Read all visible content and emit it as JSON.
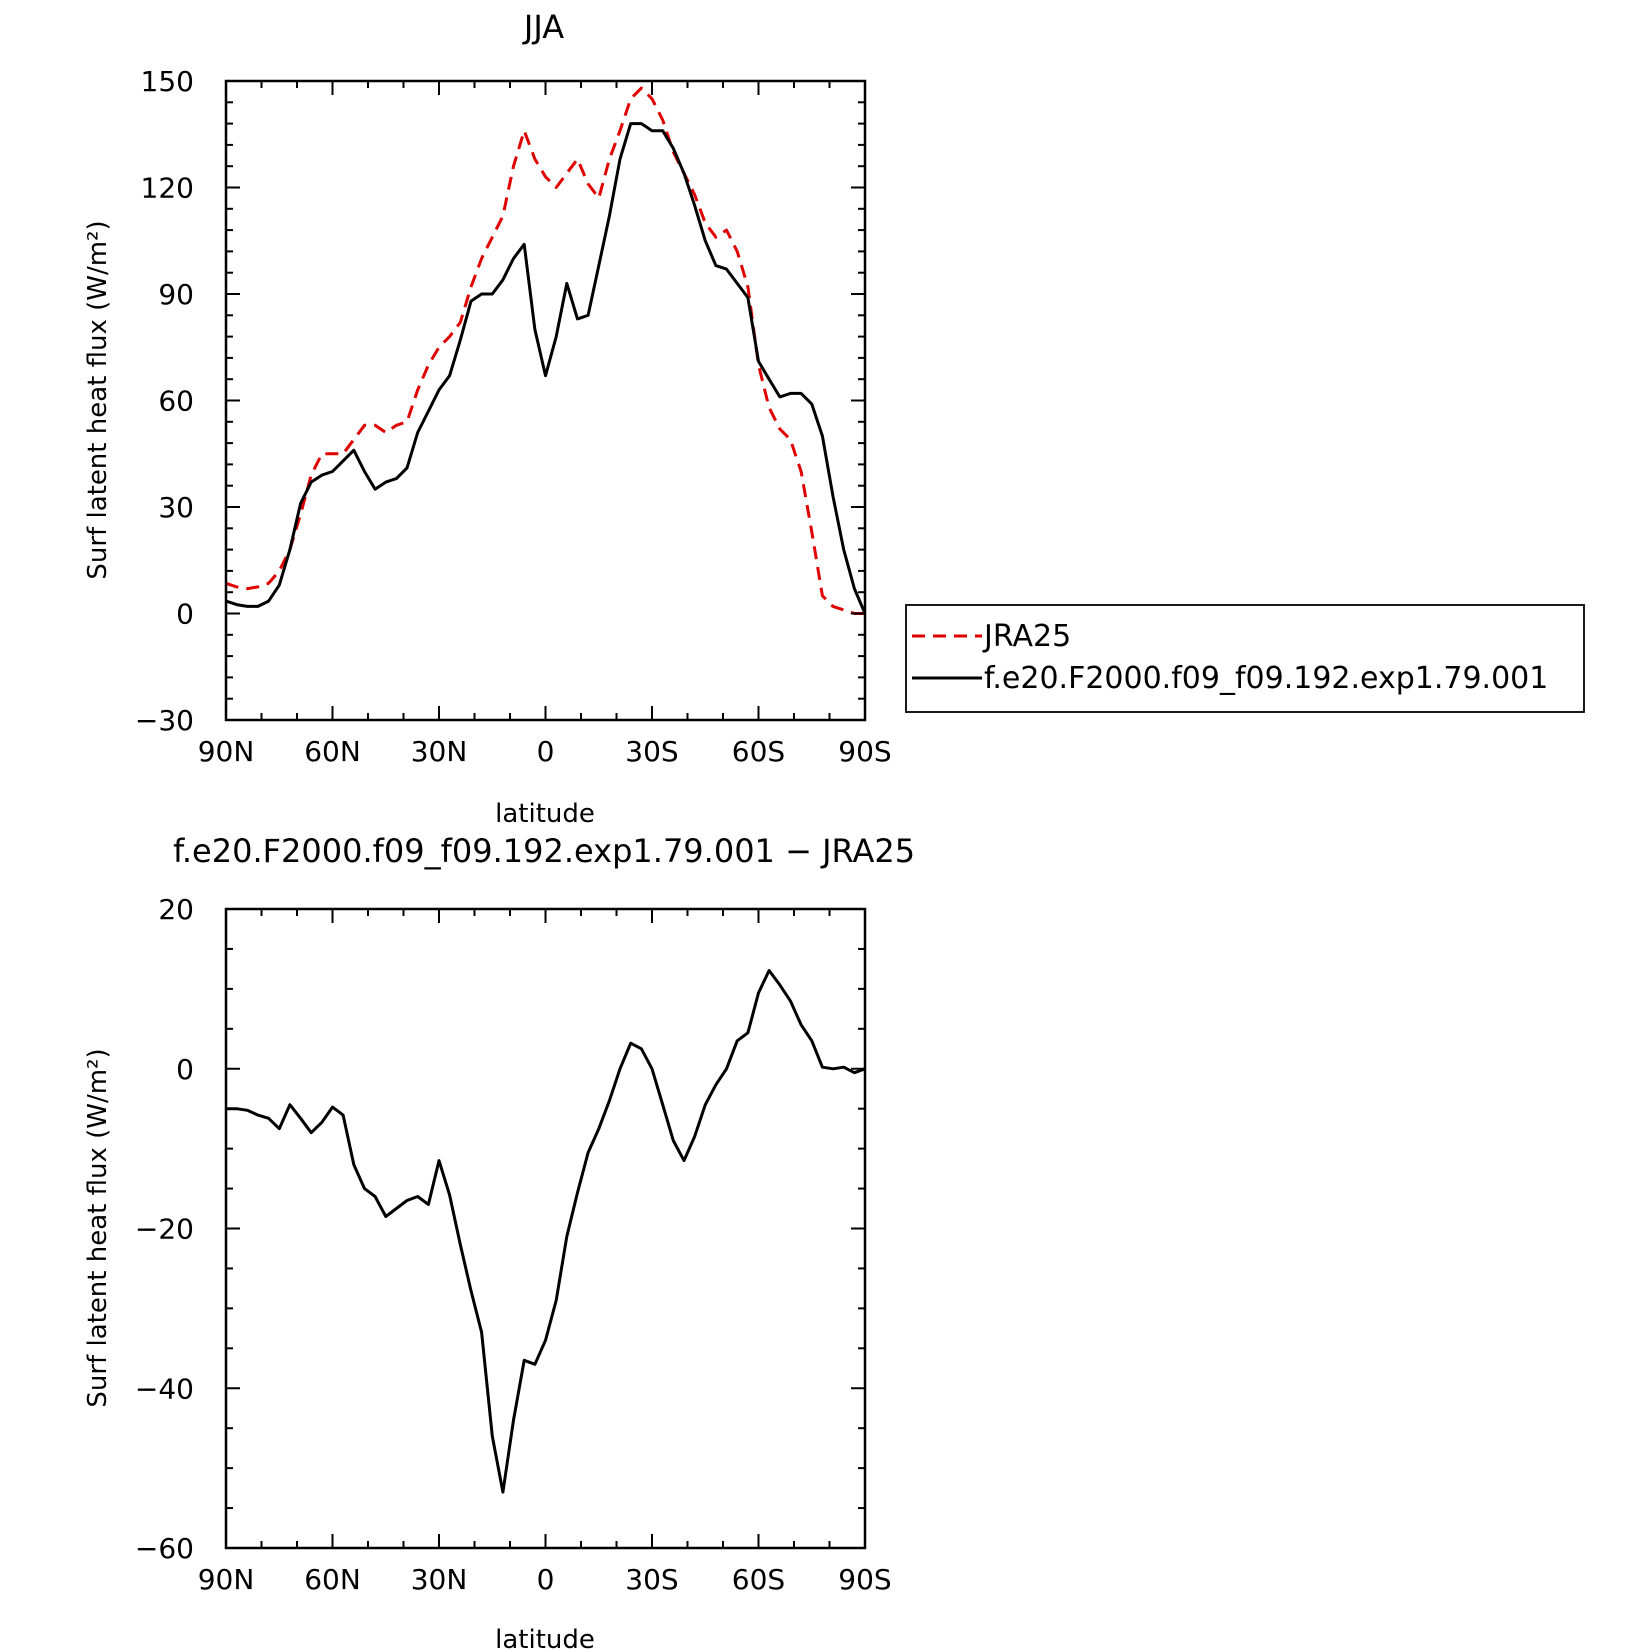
{
  "chart_data": [
    {
      "type": "line",
      "title": "JJA",
      "xlabel": "latitude",
      "ylabel": "Surf latent heat flux (W/m²)",
      "xlim": [
        90,
        -90
      ],
      "ylim": [
        -30,
        150
      ],
      "xticks": [
        90,
        60,
        30,
        0,
        -30,
        -60,
        -90
      ],
      "xtick_labels": [
        "90N",
        "60N",
        "30N",
        "0",
        "30S",
        "60S",
        "90S"
      ],
      "yticks": [
        -30,
        0,
        30,
        60,
        90,
        120,
        150
      ],
      "ytick_labels": [
        "−30",
        "0",
        "30",
        "60",
        "90",
        "120",
        "150"
      ],
      "legend": {
        "placement": "right",
        "entries": [
          "JRA25",
          "f.e20.F2000.f09_f09.192.exp1.79.001"
        ]
      },
      "series": [
        {
          "name": "JRA25",
          "color": "#e00000",
          "dash": "dashed",
          "x": [
            90,
            87,
            84,
            81,
            78,
            75,
            72,
            69,
            66,
            63,
            60,
            57,
            54,
            51,
            48,
            45,
            42,
            39,
            36,
            33,
            30,
            27,
            24,
            21,
            18,
            15,
            12,
            9,
            6,
            3,
            0,
            -3,
            -6,
            -9,
            -12,
            -15,
            -18,
            -21,
            -24,
            -27,
            -30,
            -33,
            -36,
            -39,
            -42,
            -45,
            -48,
            -51,
            -54,
            -57,
            -60,
            -63,
            -66,
            -69,
            -72,
            -75,
            -78,
            -81,
            -84,
            -87,
            -90
          ],
          "y": [
            8.5,
            7.5,
            7,
            7.5,
            8.5,
            12,
            18,
            28,
            39,
            45,
            45,
            45,
            49,
            53,
            53,
            51,
            53,
            54,
            63,
            70,
            75,
            78,
            82,
            92,
            100,
            106,
            112,
            126,
            136,
            128,
            123,
            120,
            124,
            128,
            121,
            117,
            128,
            136,
            145,
            148,
            145,
            139,
            130,
            124,
            118,
            110,
            106,
            108,
            102,
            92,
            70,
            58,
            52,
            49,
            40,
            23,
            5,
            2,
            1,
            0,
            0
          ]
        },
        {
          "name": "f.e20.F2000.f09_f09.192.exp1.79.001",
          "color": "#000000",
          "dash": "solid",
          "x": [
            90,
            87,
            84,
            81,
            78,
            75,
            72,
            69,
            66,
            63,
            60,
            57,
            54,
            51,
            48,
            45,
            42,
            39,
            36,
            33,
            30,
            27,
            24,
            21,
            18,
            15,
            12,
            9,
            6,
            3,
            0,
            -3,
            -6,
            -9,
            -12,
            -15,
            -18,
            -21,
            -24,
            -27,
            -30,
            -33,
            -36,
            -39,
            -42,
            -45,
            -48,
            -51,
            -54,
            -57,
            -60,
            -63,
            -66,
            -69,
            -72,
            -75,
            -78,
            -81,
            -84,
            -87,
            -90
          ],
          "y": [
            3.5,
            2.5,
            2,
            2,
            3.5,
            8,
            18,
            31,
            37,
            39,
            40,
            43,
            46,
            40,
            35,
            37,
            38,
            41,
            51,
            57,
            63,
            67,
            77,
            88,
            90,
            90,
            94,
            100,
            104,
            80,
            67,
            78,
            93,
            83,
            84,
            98,
            112,
            128,
            138,
            138,
            136,
            136,
            131,
            124,
            115,
            105,
            98,
            97,
            93,
            89,
            71,
            66,
            61,
            62,
            62,
            59,
            50,
            33,
            18,
            7,
            0
          ]
        }
      ]
    },
    {
      "type": "line",
      "title": "f.e20.F2000.f09_f09.192.exp1.79.001 − JRA25",
      "xlabel": "latitude",
      "ylabel": "Surf latent heat flux (W/m²)",
      "xlim": [
        90,
        -90
      ],
      "ylim": [
        -60,
        20
      ],
      "xticks": [
        90,
        60,
        30,
        0,
        -30,
        -60,
        -90
      ],
      "xtick_labels": [
        "90N",
        "60N",
        "30N",
        "0",
        "30S",
        "60S",
        "90S"
      ],
      "yticks": [
        -60,
        -40,
        -20,
        0,
        20
      ],
      "ytick_labels": [
        "−60",
        "−40",
        "−20",
        "0",
        "20"
      ],
      "series": [
        {
          "color": "#000000",
          "dash": "solid",
          "x": [
            90,
            87,
            84,
            81,
            78,
            75,
            72,
            69,
            66,
            63,
            60,
            57,
            54,
            51,
            48,
            45,
            42,
            39,
            36,
            33,
            30,
            27,
            24,
            21,
            18,
            15,
            12,
            9,
            6,
            3,
            0,
            -3,
            -6,
            -9,
            -12,
            -15,
            -18,
            -21,
            -24,
            -27,
            -30,
            -33,
            -36,
            -39,
            -42,
            -45,
            -48,
            -51,
            -54,
            -57,
            -60,
            -63,
            -66,
            -69,
            -72,
            -75,
            -78,
            -81,
            -84,
            -87,
            -90
          ],
          "y": [
            -5,
            -5,
            -5.2,
            -5.8,
            -6.2,
            -7.5,
            -4.5,
            -6.2,
            -8,
            -6.7,
            -4.8,
            -5.8,
            -12,
            -15,
            -16,
            -18.5,
            -17.5,
            -16.5,
            -16,
            -17,
            -11.5,
            -15.8,
            -22,
            -27.8,
            -33,
            -46,
            -53,
            -44,
            -36.5,
            -37,
            -34,
            -29,
            -21,
            -15.5,
            -10.5,
            -7.5,
            -4,
            0,
            3.2,
            2.5,
            0,
            -4.5,
            -9,
            -11.5,
            -8.5,
            -4.5,
            -2,
            0,
            3.5,
            4.5,
            9.5,
            12.3,
            10.5,
            8.5,
            5.5,
            3.5,
            0.2,
            0,
            0.2,
            -0.5,
            0
          ]
        }
      ]
    }
  ]
}
